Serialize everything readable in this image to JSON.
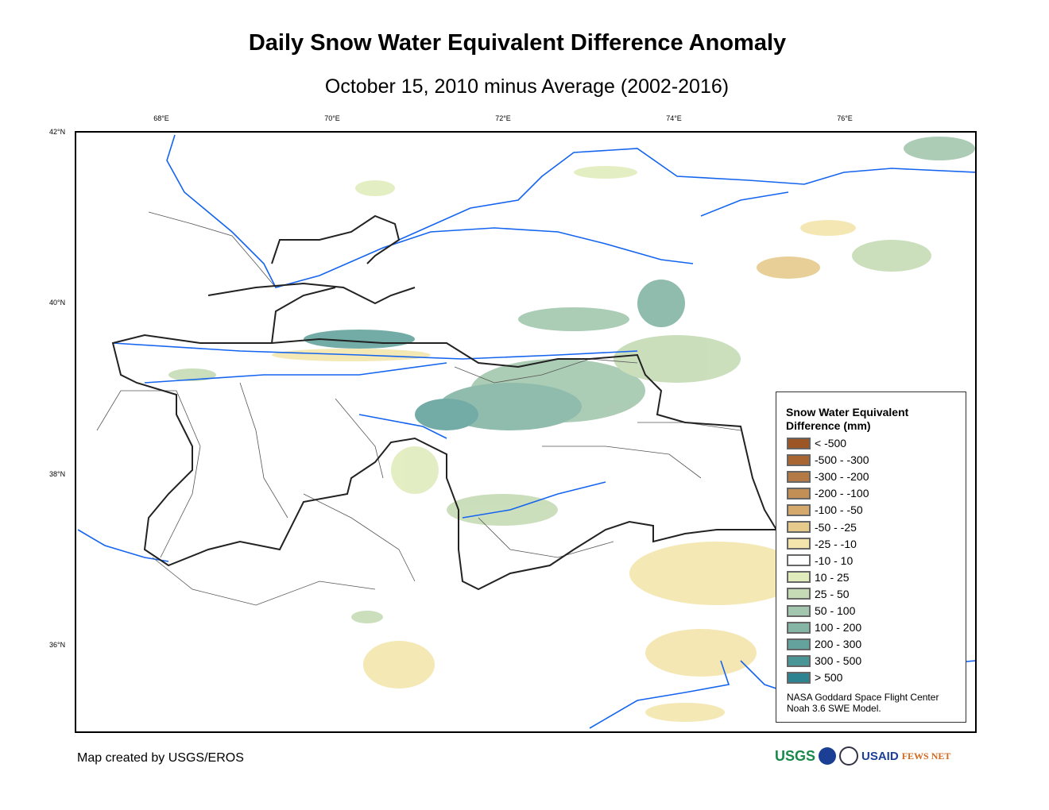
{
  "title": "Daily Snow Water Equivalent Difference Anomaly",
  "subtitle": "October 15, 2010 minus Average (2002-2016)",
  "lon_ticks": [
    "68°E",
    "70°E",
    "72°E",
    "74°E",
    "76°E"
  ],
  "lat_ticks": [
    "42°N",
    "40°N",
    "38°N",
    "36°N"
  ],
  "legend": {
    "title_line1": "Snow Water Equivalent",
    "title_line2": "Difference (mm)",
    "classes": [
      {
        "label": "< -500",
        "color": "#9c5524"
      },
      {
        "label": "-500 - -300",
        "color": "#a96632"
      },
      {
        "label": "-300 - -200",
        "color": "#b47a45"
      },
      {
        "label": "-200 - -100",
        "color": "#c28f56"
      },
      {
        "label": "-100 - -50",
        "color": "#d4a96b"
      },
      {
        "label": "-50 - -25",
        "color": "#e6ca8c"
      },
      {
        "label": "-25 - -10",
        "color": "#f3e5ac"
      },
      {
        "label": "-10 - 10",
        "color": "#ffffff"
      },
      {
        "label": "10 - 25",
        "color": "#e1ecbd"
      },
      {
        "label": "25 - 50",
        "color": "#c5dbb5"
      },
      {
        "label": "50 - 100",
        "color": "#a3c7ae"
      },
      {
        "label": "100 - 200",
        "color": "#84b5a5"
      },
      {
        "label": "200 - 300",
        "color": "#64a39d"
      },
      {
        "label": "300 - 500",
        "color": "#4a9596"
      },
      {
        "label": "> 500",
        "color": "#2d8390"
      }
    ],
    "credit_line1": "NASA Goddard Space Flight Center",
    "credit_line2": "Noah 3.6 SWE Model."
  },
  "footer": {
    "created_by": "Map created by USGS/EROS"
  },
  "logos": {
    "usgs": "USGS",
    "usaid": "USAID",
    "fewsnet": "FEWS NET"
  }
}
